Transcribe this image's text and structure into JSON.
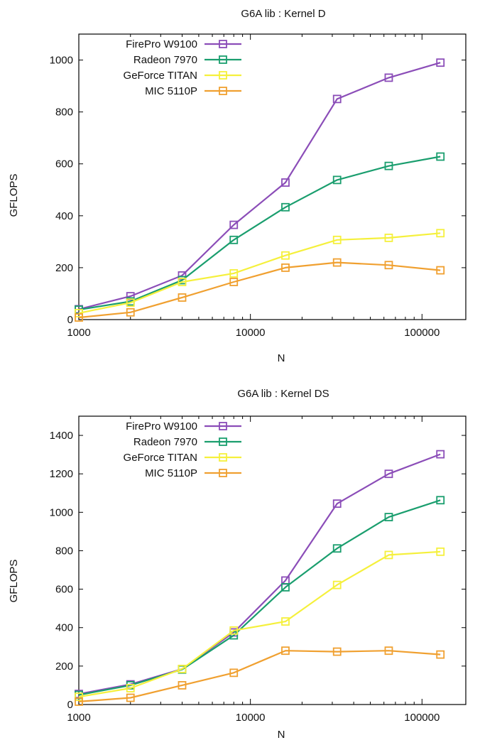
{
  "chart_data": [
    {
      "type": "line",
      "title": "G6A lib : Kernel D",
      "xlabel": "N",
      "ylabel": "GFLOPS",
      "xscale": "log",
      "xlim": [
        1000,
        180000
      ],
      "ylim": [
        0,
        1100
      ],
      "x_ticks": [
        1000,
        10000,
        100000
      ],
      "x_tick_labels": [
        "1000",
        "10000",
        "100000"
      ],
      "y_ticks": [
        0,
        200,
        400,
        600,
        800,
        1000
      ],
      "y_tick_labels": [
        "0",
        "200",
        "400",
        "600",
        "800",
        "1000"
      ],
      "legend_position": "top-left",
      "marker": "open-square",
      "x": [
        1000,
        2000,
        4000,
        8000,
        16000,
        32000,
        64000,
        128000
      ],
      "series": [
        {
          "name": "FirePro W9100",
          "color": "#8b4db8",
          "values": [
            40,
            90,
            170,
            365,
            528,
            850,
            932,
            990
          ]
        },
        {
          "name": "Radeon 7970",
          "color": "#1a9e6e",
          "values": [
            38,
            70,
            152,
            307,
            433,
            538,
            592,
            628
          ]
        },
        {
          "name": "GeForce TITAN",
          "color": "#f5f03c",
          "values": [
            25,
            65,
            145,
            178,
            247,
            307,
            315,
            333
          ]
        },
        {
          "name": "MIC 5110P",
          "color": "#f0a030",
          "values": [
            8,
            28,
            85,
            145,
            200,
            220,
            210,
            190
          ]
        }
      ]
    },
    {
      "type": "line",
      "title": "G6A lib : Kernel DS",
      "xlabel": "N",
      "ylabel": "GFLOPS",
      "xscale": "log",
      "xlim": [
        1000,
        180000
      ],
      "ylim": [
        0,
        1500
      ],
      "x_ticks": [
        1000,
        10000,
        100000
      ],
      "x_tick_labels": [
        "1000",
        "10000",
        "100000"
      ],
      "y_ticks": [
        0,
        200,
        400,
        600,
        800,
        1000,
        1200,
        1400
      ],
      "y_tick_labels": [
        "0",
        "200",
        "400",
        "600",
        "800",
        "1000",
        "1200",
        "1400"
      ],
      "legend_position": "top-left",
      "marker": "open-square",
      "x": [
        1000,
        2000,
        4000,
        8000,
        16000,
        32000,
        64000,
        128000
      ],
      "series": [
        {
          "name": "FirePro W9100",
          "color": "#8b4db8",
          "values": [
            55,
            105,
            185,
            375,
            645,
            1045,
            1200,
            1302
          ]
        },
        {
          "name": "Radeon 7970",
          "color": "#1a9e6e",
          "values": [
            50,
            100,
            182,
            360,
            610,
            812,
            975,
            1063
          ]
        },
        {
          "name": "GeForce TITAN",
          "color": "#f5f03c",
          "values": [
            40,
            85,
            185,
            385,
            432,
            622,
            778,
            795
          ]
        },
        {
          "name": "MIC 5110P",
          "color": "#f0a030",
          "values": [
            15,
            35,
            100,
            165,
            280,
            275,
            280,
            260
          ]
        }
      ]
    }
  ]
}
